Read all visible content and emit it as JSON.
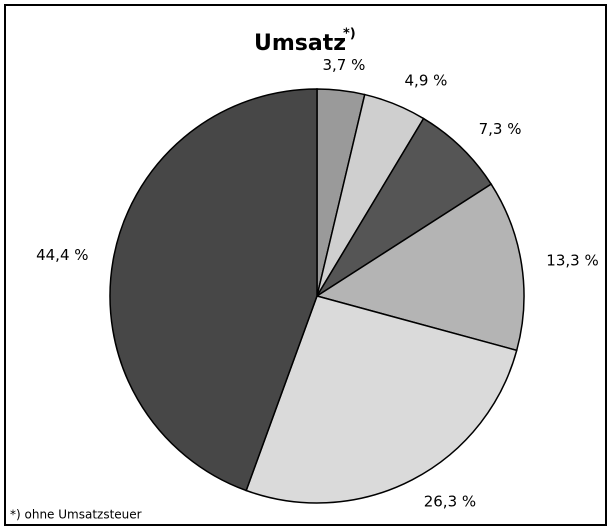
{
  "chart_data": {
    "type": "pie",
    "title": "Umsatz",
    "title_superscript": "*)",
    "categories": [
      null,
      null,
      null,
      null,
      null,
      null
    ],
    "values": [
      3.7,
      4.9,
      7.3,
      13.3,
      26.3,
      44.4
    ],
    "value_labels": [
      "3,7 %",
      "4,9 %",
      "7,3 %",
      "13,3 %",
      "26,3 %",
      "44,4 %"
    ],
    "colors": [
      "#9a9a9a",
      "#cfcfcf",
      "#555555",
      "#b4b4b4",
      "#dadada",
      "#474747"
    ],
    "footnote": "*) ohne Umsatzsteuer"
  }
}
